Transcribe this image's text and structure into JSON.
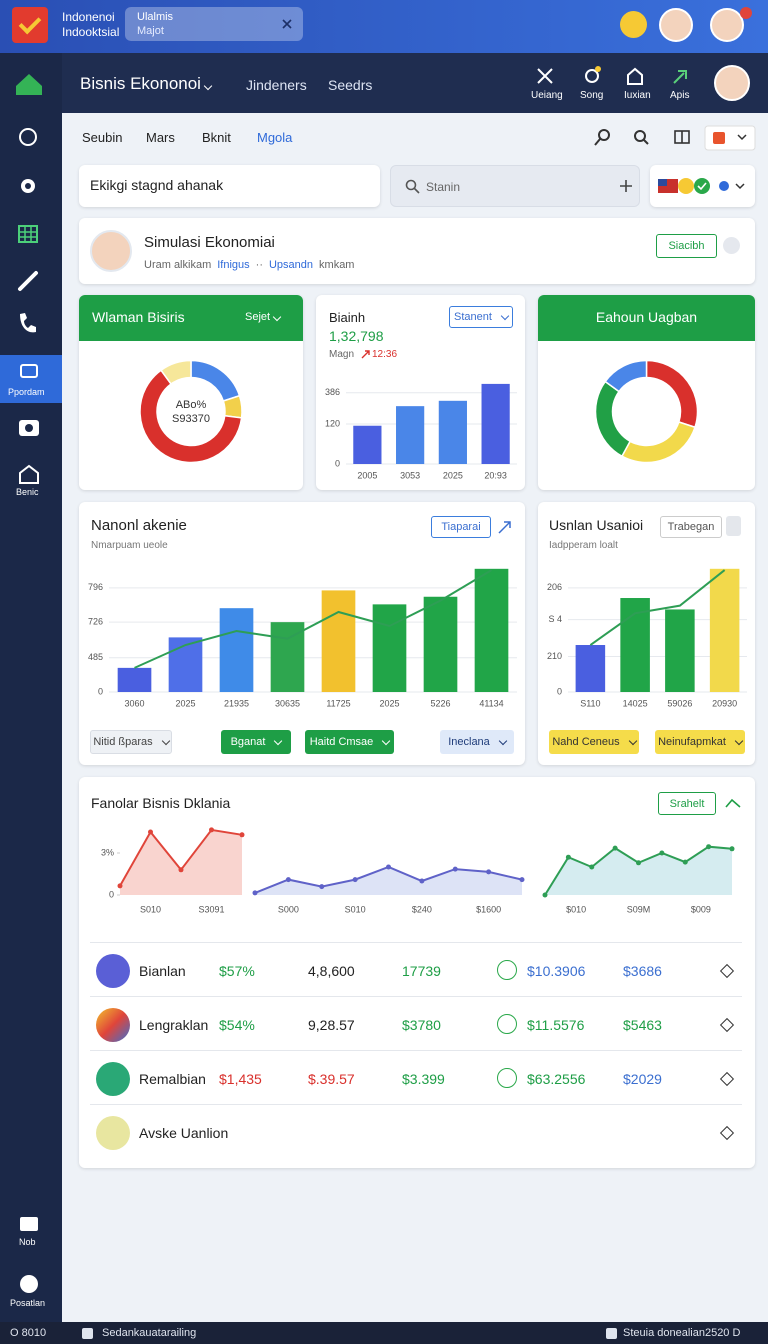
{
  "topbar": {
    "brand": [
      "Indonenoi",
      "Indooktsial"
    ],
    "search": [
      "Ulalmis",
      "Majot"
    ]
  },
  "sidebar": {
    "items": [
      "Ppordam",
      "Benic"
    ],
    "bottom": [
      "Nob",
      "Posatlan"
    ]
  },
  "nav": {
    "title": "Bisnis Ekononoi",
    "links": [
      "Jindeners",
      "Seedrs"
    ],
    "actions": [
      "Ueiang",
      "Song",
      "Iuxian",
      "Apis"
    ]
  },
  "tabs": [
    "Seubin",
    "Mars",
    "Bknit",
    "Mgola"
  ],
  "input": "Ekikgi stagnd ahanak",
  "search": "Stanin",
  "profile": {
    "title": "Simulasi Ekonomiai",
    "sub": [
      "Uram alkikam",
      "Ifnigus",
      "··",
      "Upsandn",
      "kmkam"
    ],
    "button": "Siacibh"
  },
  "cards": [
    {
      "title": "Wlaman Bisiris",
      "select": "Sejet",
      "center": [
        "ABo%",
        "S93370"
      ],
      "chart": {
        "type": "pie",
        "values": [
          20,
          7,
          63,
          10
        ],
        "colors": [
          "#4a86e8",
          "#f2d04b",
          "#d9302c",
          "#f6e79a"
        ]
      }
    },
    {
      "title": "Biainh",
      "value": "1,32,798",
      "note": "Magn",
      "change": "12:36",
      "button": "Stanent",
      "chart": {
        "type": "bar",
        "categories": [
          "2005",
          "3053",
          "2025",
          "20:93"
        ],
        "values": [
          43,
          65,
          71,
          90
        ],
        "colors": [
          "#4a5fe0",
          "#4a86e8",
          "#4a86e8",
          "#4a5fe0"
        ],
        "ylim": [
          0,
          100
        ],
        "yticks": [
          0,
          {
            "value": 45,
            "label": "120"
          },
          {
            "value": 80,
            "label": "386"
          }
        ]
      }
    },
    {
      "title": "Eahoun Uagban",
      "chart": {
        "type": "pie",
        "values": [
          30,
          28,
          27,
          15
        ],
        "colors": [
          "#d9302c",
          "#f2d94b",
          "#21a046",
          "#4a86e8"
        ]
      }
    },
    {
      "title": "Nanonl akenie",
      "subtitle": "Nmarpuam ueole",
      "button": "Tiaparai",
      "filters": [
        "Nitid ßparas",
        "Bganat",
        "Haitd Cmsae",
        "Ineclana"
      ],
      "chart": {
        "type": "bar",
        "categories": [
          "3060",
          "2025",
          "21935",
          "30635",
          "11725",
          "2025",
          "5226",
          "41134"
        ],
        "values": [
          19,
          43,
          66,
          55,
          80,
          69,
          75,
          97
        ],
        "line": [
          19,
          37,
          48,
          42,
          63,
          52,
          72,
          96
        ],
        "line_color": "#2e9e55",
        "colors": [
          "#4a5fe0",
          "#4f6fe8",
          "#3f8be8",
          "#2ea64f",
          "#f2c12e",
          "#21a548",
          "#21a548",
          "#21a548"
        ],
        "ylim": [
          0,
          100
        ],
        "yticks": [
          0,
          {
            "value": 27,
            "label": "485"
          },
          {
            "value": 55,
            "label": "726"
          },
          {
            "value": 82,
            "label": "796"
          }
        ]
      }
    },
    {
      "title": "Usnlan Usanioi",
      "subtitle": "Iadpperam loalt",
      "button": "Trabegan",
      "filters": [
        "Nahd Ceneus",
        "Neinufapmkat"
      ],
      "chart": {
        "type": "bar",
        "categories": [
          "S110",
          "14025",
          "59026",
          "20930"
        ],
        "values": [
          37,
          74,
          65,
          97
        ],
        "line": [
          37,
          62,
          68,
          96
        ],
        "line_color": "#2e9e55",
        "colors": [
          "#4a5fe0",
          "#21a548",
          "#21a548",
          "#f2d94b"
        ],
        "ylim": [
          0,
          100
        ],
        "yticks": [
          0,
          {
            "value": 28,
            "label": "210"
          },
          {
            "value": 57,
            "label": "S 4"
          },
          {
            "value": 82,
            "label": "206"
          }
        ]
      }
    }
  ],
  "summary": {
    "title": "Fanolar Bisnis Dklania",
    "button": "Srahelt",
    "minis": [
      {
        "type": "area",
        "values": [
          13,
          90,
          36,
          93,
          86
        ],
        "color": "#e0453a",
        "fill": "#f9d4cf",
        "ylim": [
          0,
          100
        ],
        "yticks": [
          0,
          {
            "value": 60,
            "label": "3%"
          }
        ],
        "xlabels": [
          "S010",
          "S3091"
        ]
      },
      {
        "type": "area",
        "values": [
          3,
          22,
          12,
          22,
          40,
          20,
          37,
          33,
          22
        ],
        "color": "#5f62c8",
        "fill": "#dde3f6",
        "ylim": [
          0,
          100
        ],
        "xlabels": [
          "S000",
          "S010",
          "$240",
          "$1600"
        ]
      },
      {
        "type": "area",
        "values": [
          0,
          54,
          40,
          67,
          46,
          60,
          47,
          69,
          66
        ],
        "color": "#2e9e55",
        "fill": "#d5ecf0",
        "ylim": [
          0,
          100
        ],
        "xlabels": [
          "$010",
          "S09M",
          "$009"
        ]
      }
    ],
    "rows": [
      {
        "name": "Bianlan",
        "cells": [
          "$57%",
          "4,8,600",
          "17739",
          "$10.3906",
          "$3686"
        ],
        "colors": [
          "#1e9e46",
          "#222",
          "#1e9e46",
          "#3b6fd0",
          "#3b6fd0"
        ]
      },
      {
        "name": "Lengraklan",
        "cells": [
          "$54%",
          "9,28.57",
          "$3780",
          "$11.5576",
          "$5463"
        ],
        "colors": [
          "#1e9e46",
          "#222",
          "#1e9e46",
          "#1e9e46",
          "#1e9e46"
        ]
      },
      {
        "name": "Remalbian",
        "cells": [
          "$1,435",
          "$.39.57",
          "$3.399",
          "$63.2556",
          "$2029"
        ],
        "colors": [
          "#d9302c",
          "#d9302c",
          "#1e9e46",
          "#1e9e46",
          "#3b6fd0"
        ]
      },
      {
        "name": "Avske Uanlion",
        "cells": [],
        "colors": []
      }
    ]
  },
  "statusbar": [
    "O 8010",
    "Sedankauatarailing",
    "Steuia donealian2520 D"
  ]
}
